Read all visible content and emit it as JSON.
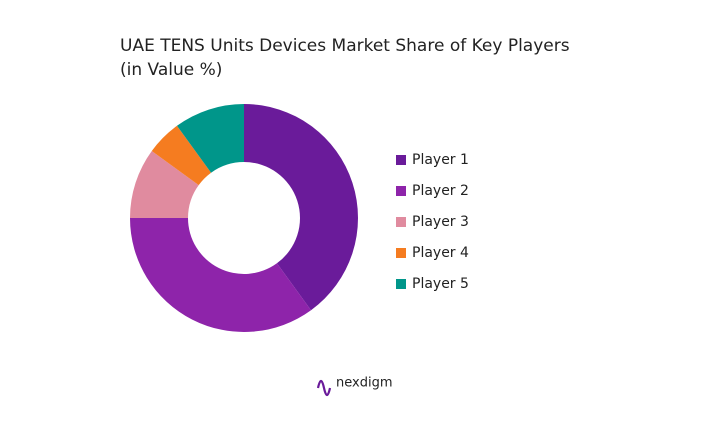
{
  "chart_data": {
    "type": "donut",
    "title": "UAE TENS Units Devices Market Share of Key Players",
    "subtitle": "(in Value %)",
    "categories": [
      "Player 1",
      "Player 2",
      "Player 3",
      "Player 4",
      "Player 5"
    ],
    "values": [
      40,
      35,
      10,
      5,
      10
    ],
    "colors": [
      "#6a1b9a",
      "#8e24aa",
      "#e08b9f",
      "#f57c20",
      "#00968a"
    ],
    "legend": "right",
    "brand": "nexdigm"
  }
}
